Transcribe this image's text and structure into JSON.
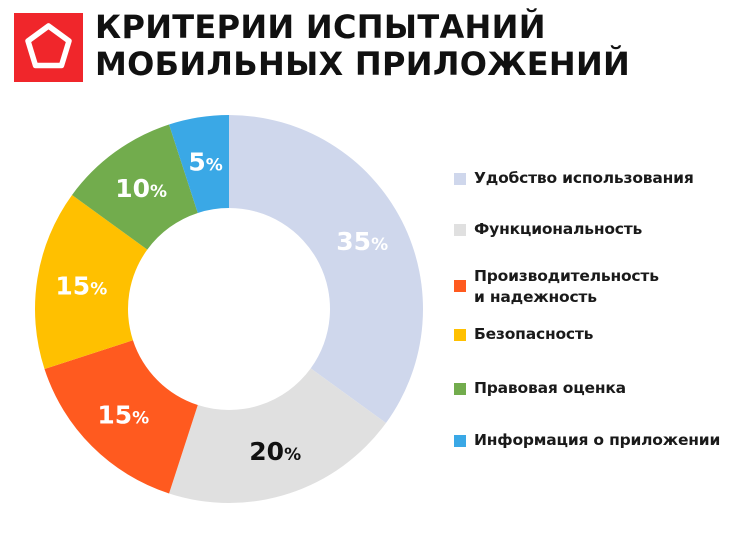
{
  "header": {
    "title_line1": "КРИТЕРИИ ИСПЫТАНИЙ",
    "title_line2": "МОБИЛЬНЫХ ПРИЛОЖЕНИЙ",
    "logo_icon": "pentagon-logo-icon",
    "logo_color": "#f0262b"
  },
  "chart_data": {
    "type": "pie",
    "variant": "donut",
    "title": "КРИТЕРИИ ИСПЫТАНИЙ МОБИЛЬНЫХ ПРИЛОЖЕНИЙ",
    "categories": [
      "Удобство использования",
      "Функциональность",
      "Производительность и надежность",
      "Безопасность",
      "Правовая оценка",
      "Информация о приложении"
    ],
    "values": [
      35,
      20,
      15,
      15,
      10,
      5
    ],
    "labels": [
      "35%",
      "20%",
      "15%",
      "15%",
      "10%",
      "5%"
    ],
    "colors": [
      "#cfd7ec",
      "#e0e0e0",
      "#ff5a1f",
      "#ffc000",
      "#72ac4d",
      "#3aa8e6"
    ],
    "label_colors": [
      "#ffffff",
      "#111111",
      "#ffffff",
      "#ffffff",
      "#ffffff",
      "#ffffff"
    ],
    "start_angle": "12 o'clock",
    "direction": "clockwise",
    "legend_position": "right"
  },
  "legend": {
    "items": [
      {
        "label": "Удобство использования",
        "color": "#cfd7ec"
      },
      {
        "label": "Функциональность",
        "color": "#e0e0e0"
      },
      {
        "label": "Производительность\nи надежность",
        "color": "#ff5a1f"
      },
      {
        "label": "Безопасность",
        "color": "#ffc000"
      },
      {
        "label": "Правовая оценка",
        "color": "#72ac4d"
      },
      {
        "label": "Информация о приложении",
        "color": "#3aa8e6"
      }
    ]
  }
}
